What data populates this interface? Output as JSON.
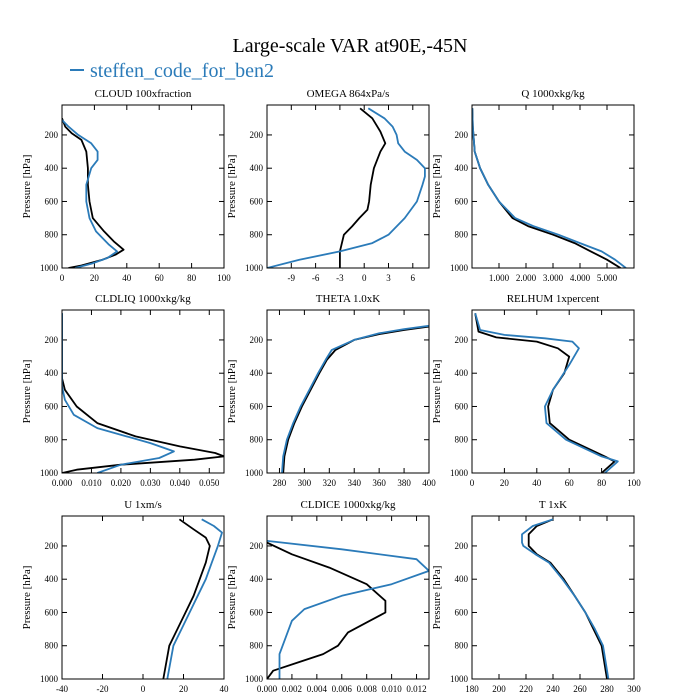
{
  "figure": {
    "title": "Large-scale VAR at90E,-45N",
    "legend": {
      "label": "steffen_code_for_ben2",
      "color": "#2b7bb9",
      "placement": "top-left"
    }
  },
  "colors": {
    "black_series": "#000000",
    "blue_series": "#2b7bb9"
  },
  "chart_data": [
    {
      "type": "line",
      "title": "CLOUD 100xfraction",
      "ylabel": "Pressure [hPa]",
      "xlim": [
        0,
        100
      ],
      "ylim": [
        1000,
        20
      ],
      "xticks": [
        0,
        20,
        40,
        60,
        80,
        100
      ],
      "xtick_labels": [
        "0",
        "20",
        "40",
        "60",
        "80",
        "100"
      ],
      "yticks": [
        200,
        400,
        600,
        800,
        1000
      ],
      "ytick_labels": [
        "200",
        "400",
        "600",
        "800",
        "1000"
      ],
      "series": [
        {
          "color": "black",
          "x": [
            0,
            2,
            6,
            12,
            15,
            16,
            16,
            17,
            19,
            26,
            32,
            38,
            33,
            25,
            12,
            4
          ],
          "y": [
            100,
            150,
            190,
            230,
            300,
            400,
            500,
            600,
            700,
            780,
            840,
            890,
            920,
            950,
            985,
            1000
          ]
        },
        {
          "color": "blue",
          "x": [
            0,
            4,
            10,
            18,
            22,
            22,
            18,
            15,
            15,
            17,
            21,
            29,
            34,
            28,
            18,
            8
          ],
          "y": [
            110,
            150,
            200,
            250,
            300,
            350,
            400,
            500,
            600,
            700,
            780,
            860,
            900,
            940,
            975,
            1000
          ]
        }
      ]
    },
    {
      "type": "line",
      "title": "OMEGA 864xPa/s",
      "ylabel": "Pressure [hPa]",
      "xlim": [
        -12,
        8
      ],
      "ylim": [
        1000,
        20
      ],
      "xticks": [
        -9,
        -6,
        -3,
        0,
        3,
        6
      ],
      "xtick_labels": [
        "-9",
        "-6",
        "-3",
        "0",
        "3",
        "6"
      ],
      "yticks": [
        200,
        400,
        600,
        800,
        1000
      ],
      "ytick_labels": [
        "200",
        "400",
        "600",
        "800",
        "1000"
      ],
      "series": [
        {
          "color": "black",
          "x": [
            -0.5,
            1.0,
            2.0,
            2.6,
            2.0,
            1.2,
            0.8,
            0.6,
            0.4,
            -0.6,
            -1.5,
            -2.5,
            -3.0,
            -3.0
          ],
          "y": [
            40,
            100,
            180,
            250,
            300,
            400,
            500,
            600,
            650,
            700,
            750,
            800,
            900,
            1000
          ]
        },
        {
          "color": "blue",
          "x": [
            0.5,
            2.5,
            3.5,
            4.0,
            4.2,
            5.0,
            6.5,
            7.5,
            7.5,
            7.2,
            6.5,
            5.0,
            3.0,
            1.0,
            -3.0,
            -8.0,
            -12.0
          ],
          "y": [
            40,
            100,
            150,
            200,
            250,
            300,
            350,
            400,
            450,
            500,
            600,
            700,
            800,
            850,
            900,
            950,
            1000
          ]
        }
      ]
    },
    {
      "type": "line",
      "title": "Q 1000xkg/kg",
      "ylabel": "Pressure [hPa]",
      "xlim": [
        0,
        6
      ],
      "ylim": [
        1000,
        20
      ],
      "xticks": [
        1,
        2,
        3,
        4,
        5
      ],
      "xtick_labels": [
        "1.000",
        "2.000",
        "3.000",
        "4.000",
        "5.000"
      ],
      "yticks": [
        200,
        400,
        600,
        800,
        1000
      ],
      "ytick_labels": [
        "200",
        "400",
        "600",
        "800",
        "1000"
      ],
      "series": [
        {
          "color": "black",
          "x": [
            0.01,
            0.03,
            0.1,
            0.3,
            0.6,
            1.0,
            1.5,
            2.1,
            3.0,
            3.8,
            4.4,
            5.0,
            5.5
          ],
          "y": [
            40,
            150,
            300,
            400,
            500,
            600,
            700,
            750,
            800,
            850,
            900,
            950,
            1000
          ]
        },
        {
          "color": "blue",
          "x": [
            0.01,
            0.03,
            0.1,
            0.3,
            0.6,
            1.0,
            1.6,
            2.3,
            3.2,
            4.0,
            4.8,
            5.3,
            5.7
          ],
          "y": [
            40,
            150,
            300,
            400,
            500,
            600,
            700,
            750,
            800,
            850,
            900,
            950,
            1000
          ]
        }
      ]
    },
    {
      "type": "line",
      "title": "CLDLIQ 1000xkg/kg",
      "ylabel": "Pressure [hPa]",
      "xlim": [
        0,
        0.055
      ],
      "ylim": [
        1000,
        20
      ],
      "xticks": [
        0,
        0.01,
        0.02,
        0.03,
        0.04,
        0.05
      ],
      "xtick_labels": [
        "0.000",
        "0.010",
        "0.020",
        "0.030",
        "0.040",
        "0.050"
      ],
      "yticks": [
        200,
        400,
        600,
        800,
        1000
      ],
      "ytick_labels": [
        "200",
        "400",
        "600",
        "800",
        "1000"
      ],
      "series": [
        {
          "color": "black",
          "x": [
            0,
            0,
            0.001,
            0.005,
            0.012,
            0.025,
            0.04,
            0.052,
            0.055,
            0.045,
            0.02,
            0.005,
            0
          ],
          "y": [
            40,
            430,
            500,
            600,
            700,
            780,
            840,
            880,
            900,
            920,
            950,
            980,
            1000
          ]
        },
        {
          "color": "blue",
          "x": [
            0,
            0,
            0.001,
            0.004,
            0.012,
            0.03,
            0.038,
            0.033,
            0.02,
            0.012
          ],
          "y": [
            40,
            480,
            560,
            650,
            730,
            820,
            870,
            910,
            950,
            1000
          ]
        }
      ]
    },
    {
      "type": "line",
      "title": "THETA 1.0xK",
      "ylabel": "Pressure [hPa]",
      "xlim": [
        270,
        400
      ],
      "ylim": [
        1000,
        20
      ],
      "xticks": [
        280,
        300,
        320,
        340,
        360,
        380,
        400
      ],
      "xtick_labels": [
        "280",
        "300",
        "320",
        "340",
        "360",
        "380",
        "400"
      ],
      "yticks": [
        200,
        400,
        600,
        800,
        1000
      ],
      "ytick_labels": [
        "200",
        "400",
        "600",
        "800",
        "1000"
      ],
      "series": [
        {
          "color": "black",
          "x": [
            400,
            380,
            360,
            340,
            325,
            318,
            312,
            305,
            298,
            292,
            287,
            284,
            283
          ],
          "y": [
            120,
            140,
            165,
            200,
            260,
            320,
            400,
            500,
            600,
            700,
            800,
            900,
            1000
          ]
        },
        {
          "color": "blue",
          "x": [
            400,
            380,
            360,
            340,
            322,
            317,
            311,
            304,
            297,
            291,
            286,
            283,
            282
          ],
          "y": [
            115,
            135,
            160,
            200,
            260,
            320,
            400,
            500,
            600,
            700,
            800,
            900,
            1000
          ]
        }
      ]
    },
    {
      "type": "line",
      "title": "RELHUM 1xpercent",
      "ylabel": "Pressure [hPa]",
      "xlim": [
        0,
        100
      ],
      "ylim": [
        1000,
        20
      ],
      "xticks": [
        0,
        20,
        40,
        60,
        80,
        100
      ],
      "xtick_labels": [
        "0",
        "20",
        "40",
        "60",
        "80",
        "100"
      ],
      "yticks": [
        200,
        400,
        600,
        800,
        1000
      ],
      "ytick_labels": [
        "200",
        "400",
        "600",
        "800",
        "1000"
      ],
      "series": [
        {
          "color": "black",
          "x": [
            2,
            4,
            15,
            40,
            53,
            60,
            57,
            50,
            47,
            48,
            60,
            82,
            88,
            80
          ],
          "y": [
            40,
            150,
            185,
            210,
            250,
            300,
            400,
            500,
            600,
            700,
            800,
            900,
            930,
            1000
          ]
        },
        {
          "color": "blue",
          "x": [
            2,
            5,
            20,
            45,
            62,
            66,
            60,
            50,
            45,
            46,
            58,
            80,
            90,
            82
          ],
          "y": [
            40,
            140,
            170,
            190,
            210,
            250,
            350,
            500,
            600,
            700,
            800,
            900,
            930,
            1000
          ]
        }
      ]
    },
    {
      "type": "line",
      "title": "U 1xm/s",
      "ylabel": "Pressure [hPa]",
      "xlim": [
        -40,
        40
      ],
      "ylim": [
        1000,
        20
      ],
      "xticks": [
        -40,
        -20,
        0,
        20,
        40
      ],
      "xtick_labels": [
        "-40",
        "-20",
        "0",
        "20",
        "40"
      ],
      "yticks": [
        200,
        400,
        600,
        800,
        1000
      ],
      "ytick_labels": [
        "200",
        "400",
        "600",
        "800",
        "1000"
      ],
      "series": [
        {
          "color": "black",
          "x": [
            18,
            25,
            31,
            33,
            31,
            28,
            25,
            21,
            17,
            13,
            10
          ],
          "y": [
            40,
            100,
            150,
            200,
            300,
            400,
            500,
            600,
            700,
            800,
            1000
          ]
        },
        {
          "color": "blue",
          "x": [
            29,
            35,
            39,
            37,
            34,
            31,
            27,
            23,
            19,
            15,
            12
          ],
          "y": [
            40,
            80,
            120,
            200,
            300,
            400,
            500,
            600,
            700,
            800,
            1000
          ]
        }
      ]
    },
    {
      "type": "line",
      "title": "CLDICE 1000xkg/kg",
      "ylabel": "Pressure [hPa]",
      "xlim": [
        0,
        0.013
      ],
      "ylim": [
        1000,
        20
      ],
      "xticks": [
        0,
        0.002,
        0.004,
        0.006,
        0.008,
        0.01,
        0.012
      ],
      "xtick_labels": [
        "0.000",
        "0.002",
        "0.004",
        "0.006",
        "0.008",
        "0.010",
        "0.012"
      ],
      "yticks": [
        200,
        400,
        600,
        800,
        1000
      ],
      "ytick_labels": [
        "200",
        "400",
        "600",
        "800",
        "1000"
      ],
      "series": [
        {
          "color": "black",
          "x": [
            0,
            0.002,
            0.005,
            0.008,
            0.0095,
            0.0095,
            0.008,
            0.0065,
            0.0057,
            0.0045,
            0.0025,
            0.0005,
            0
          ],
          "y": [
            180,
            250,
            330,
            430,
            530,
            600,
            660,
            720,
            800,
            850,
            900,
            950,
            1000
          ]
        },
        {
          "color": "blue",
          "x": [
            0,
            0.006,
            0.012,
            0.013,
            0.01,
            0.006,
            0.003,
            0.002,
            0.0015,
            0.001,
            0.001
          ],
          "y": [
            170,
            220,
            280,
            350,
            430,
            500,
            580,
            650,
            750,
            850,
            1000
          ]
        }
      ]
    },
    {
      "type": "line",
      "title": "T 1xK",
      "ylabel": "Pressure [hPa]",
      "xlim": [
        180,
        300
      ],
      "ylim": [
        1000,
        20
      ],
      "xticks": [
        180,
        200,
        220,
        240,
        260,
        280,
        300
      ],
      "xtick_labels": [
        "180",
        "200",
        "220",
        "240",
        "260",
        "280",
        "300"
      ],
      "yticks": [
        200,
        400,
        600,
        800,
        1000
      ],
      "ytick_labels": [
        "200",
        "400",
        "600",
        "800",
        "1000"
      ],
      "series": [
        {
          "color": "black",
          "x": [
            240,
            228,
            222,
            222,
            222,
            228,
            238,
            248,
            256,
            264,
            270,
            276,
            280
          ],
          "y": [
            40,
            80,
            130,
            180,
            200,
            250,
            300,
            400,
            500,
            600,
            700,
            800,
            1000
          ]
        },
        {
          "color": "blue",
          "x": [
            240,
            225,
            217,
            217,
            218,
            227,
            237,
            247,
            256,
            264,
            271,
            277,
            281
          ],
          "y": [
            40,
            80,
            130,
            180,
            200,
            250,
            300,
            400,
            500,
            600,
            700,
            800,
            1000
          ]
        }
      ]
    }
  ]
}
